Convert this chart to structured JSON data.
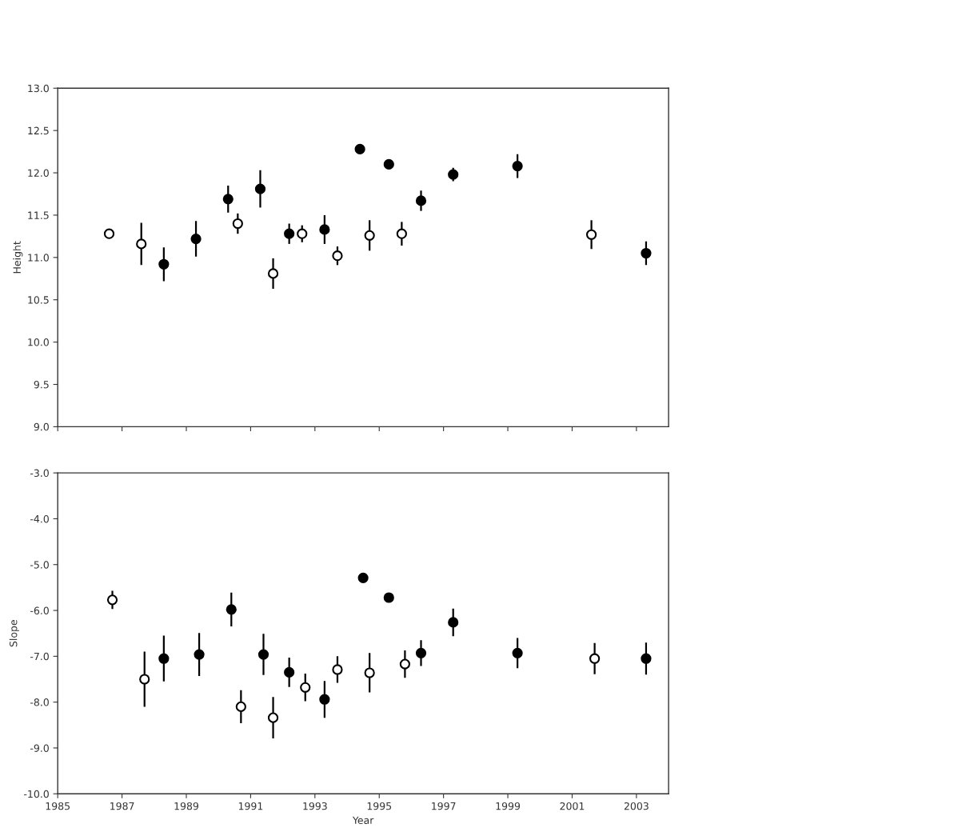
{
  "chart_data": [
    {
      "type": "scatter",
      "ylabel": "Height",
      "xlim": [
        1985,
        2004
      ],
      "ylim": [
        9.0,
        13.0
      ],
      "yticks": [
        {
          "value": 9.0,
          "label": "9.0"
        },
        {
          "value": 9.5,
          "label": "9.5"
        },
        {
          "value": 10.0,
          "label": "10.0"
        },
        {
          "value": 10.5,
          "label": "10.5"
        },
        {
          "value": 11.0,
          "label": "11.0"
        },
        {
          "value": 11.5,
          "label": "11.5"
        },
        {
          "value": 12.0,
          "label": "12.0"
        },
        {
          "value": 12.5,
          "label": "12.5"
        },
        {
          "value": 13.0,
          "label": "13.0"
        }
      ],
      "xticks": [
        1985,
        1987,
        1989,
        1991,
        1993,
        1995,
        1997,
        1999,
        2001,
        2003
      ],
      "tick_labels": "y",
      "grid": false,
      "marker": "circle",
      "series": [
        {
          "color": "#000000",
          "x": [
            1988.3,
            1989.3,
            1990.3,
            1991.3,
            1992.2,
            1993.3,
            1994.4,
            1995.3,
            1996.3,
            1997.3,
            1999.3,
            2003.3
          ],
          "values": [
            10.92,
            11.22,
            11.69,
            11.81,
            11.28,
            11.33,
            12.28,
            12.1,
            11.67,
            11.98,
            12.08,
            11.05
          ],
          "errors": [
            0.2,
            0.21,
            0.16,
            0.22,
            0.12,
            0.17,
            null,
            null,
            0.12,
            0.08,
            0.14,
            0.14
          ]
        },
        {
          "color": "#ffffff",
          "x": [
            1986.6,
            1987.6,
            1990.6,
            1991.7,
            1992.6,
            1993.7,
            1994.7,
            1995.7,
            2001.6
          ],
          "values": [
            11.28,
            11.16,
            11.4,
            10.81,
            11.28,
            11.02,
            11.26,
            11.28,
            11.27
          ],
          "errors": [
            0.05,
            0.25,
            0.12,
            0.18,
            0.1,
            0.11,
            0.18,
            0.14,
            0.17
          ]
        }
      ]
    },
    {
      "type": "scatter",
      "ylabel": "Slope",
      "xlabel": "Year",
      "xlim": [
        1985,
        2004
      ],
      "ylim": [
        -10.0,
        -3.0
      ],
      "yticks": [
        {
          "value": -10.0,
          "label": "-10.0"
        },
        {
          "value": -9.0,
          "label": "-9.0"
        },
        {
          "value": -8.0,
          "label": "-8.0"
        },
        {
          "value": -7.0,
          "label": "-7.0"
        },
        {
          "value": -6.0,
          "label": "-6.0"
        },
        {
          "value": -5.0,
          "label": "-5.0"
        },
        {
          "value": -4.0,
          "label": "-4.0"
        },
        {
          "value": -3.0,
          "label": "-3.0"
        }
      ],
      "xticks": [
        1985,
        1987,
        1989,
        1991,
        1993,
        1995,
        1997,
        1999,
        2001,
        2003
      ],
      "grid": false,
      "marker": "circle",
      "series": [
        {
          "color": "#000000",
          "x": [
            1988.3,
            1989.4,
            1990.4,
            1991.4,
            1992.2,
            1993.3,
            1994.5,
            1995.3,
            1996.3,
            1997.3,
            1999.3,
            2003.3
          ],
          "values": [
            -7.05,
            -6.96,
            -5.98,
            -6.96,
            -7.35,
            -7.94,
            -5.29,
            -5.72,
            -6.93,
            -6.26,
            -6.93,
            -7.05
          ],
          "errors": [
            0.5,
            0.47,
            0.37,
            0.45,
            0.32,
            0.4,
            null,
            0.1,
            0.28,
            0.3,
            0.33,
            0.35
          ]
        },
        {
          "color": "#ffffff",
          "x": [
            1986.7,
            1987.7,
            1990.7,
            1991.7,
            1992.7,
            1993.7,
            1994.7,
            1995.8,
            2001.7
          ],
          "values": [
            -5.77,
            -7.5,
            -8.1,
            -8.34,
            -7.68,
            -7.29,
            -7.36,
            -7.17,
            -7.05
          ],
          "errors": [
            0.2,
            0.6,
            0.36,
            0.45,
            0.3,
            0.29,
            0.43,
            0.3,
            0.34
          ]
        }
      ]
    }
  ]
}
